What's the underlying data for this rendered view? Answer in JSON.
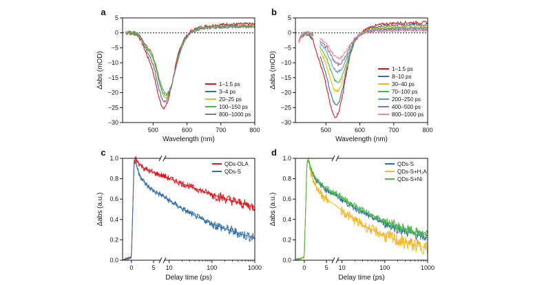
{
  "colors": {
    "red": "#e0141c",
    "blue": "#2f6ca8",
    "yellow": "#f2b51d",
    "green": "#4db848",
    "gray": "#7d7d7d",
    "purple": "#8a6fa8",
    "pink": "#f08a94",
    "lightblue": "#6a8fc4",
    "darkred": "#b8141a"
  },
  "chart_data": [
    {
      "panel": "a",
      "type": "line",
      "xlabel": "Wavelength (nm)",
      "ylabel": "Δabs (mOD)",
      "xlim": [
        410,
        800
      ],
      "ylim": [
        -30,
        5
      ],
      "xticks": [
        500,
        600,
        700,
        800
      ],
      "yticks": [
        5,
        0,
        -5,
        -10,
        -15,
        -20,
        -25,
        -30
      ],
      "legend_position": "bottom-right",
      "series": [
        {
          "name": "1–1.5 ps",
          "color": "red",
          "min": -25.0,
          "center": 532,
          "tail": 3.0
        },
        {
          "name": "3–4 ps",
          "color": "blue",
          "min": -23.0,
          "center": 535,
          "tail": 2.6
        },
        {
          "name": "20–25 ps",
          "color": "yellow",
          "min": -21.5,
          "center": 537,
          "tail": 2.4
        },
        {
          "name": "100–150 ps",
          "color": "green",
          "min": -21.0,
          "center": 538,
          "tail": 2.2
        },
        {
          "name": "800–1000 ps",
          "color": "gray",
          "min": -20.5,
          "center": 539,
          "tail": 2.0
        }
      ]
    },
    {
      "panel": "b",
      "type": "line",
      "xlabel": "Wavelength (nm)",
      "ylabel": "Δabs (mOD)",
      "xlim": [
        410,
        800
      ],
      "ylim": [
        -30,
        5
      ],
      "xticks": [
        500,
        600,
        700,
        800
      ],
      "yticks": [
        5,
        0,
        -5,
        -10,
        -15,
        -20,
        -25,
        -30
      ],
      "legend_position": "bottom-right",
      "series": [
        {
          "name": "1–1.5 ps",
          "color": "red",
          "min": -28.0,
          "center": 528,
          "tail": 3.5
        },
        {
          "name": "8–10 ps",
          "color": "blue",
          "min": -24.0,
          "center": 530,
          "tail": 2.8
        },
        {
          "name": "30–40 ps",
          "color": "yellow",
          "min": -19.5,
          "center": 532,
          "tail": 2.2
        },
        {
          "name": "70–100 ps",
          "color": "green",
          "min": -16.5,
          "center": 534,
          "tail": 1.8
        },
        {
          "name": "200–250 ps",
          "color": "lightblue",
          "min": -13.0,
          "center": 536,
          "tail": 1.4
        },
        {
          "name": "400–500 ps",
          "color": "purple",
          "min": -10.5,
          "center": 537,
          "tail": 1.0
        },
        {
          "name": "800–1000 ps",
          "color": "pink",
          "min": -8.5,
          "center": 538,
          "tail": 0.8
        }
      ]
    },
    {
      "panel": "c",
      "type": "line",
      "xlabel": "Delay time (ps)",
      "ylabel": "Δabs (a.u.)",
      "ylim": [
        0,
        1.0
      ],
      "yticks": [
        0.0,
        0.2,
        0.4,
        0.6,
        0.8,
        1.0
      ],
      "x_linear": {
        "range": [
          -2,
          7
        ],
        "ticks": [
          0,
          5
        ]
      },
      "x_log": {
        "range": [
          7,
          1000
        ],
        "ticks": [
          10,
          100,
          1000
        ]
      },
      "legend_position": "top-right",
      "series": [
        {
          "name": "QDs-OLA",
          "color": "red",
          "y_at_1ps": 1.0,
          "y_at_1000ps": 0.52
        },
        {
          "name": "QDs-S",
          "color": "blue",
          "y_at_1ps": 0.96,
          "y_at_1000ps": 0.22
        }
      ]
    },
    {
      "panel": "d",
      "type": "line",
      "xlabel": "Delay time (ps)",
      "ylabel": "Δabs (a.u.)",
      "ylim": [
        0,
        1.0
      ],
      "yticks": [
        0.0,
        0.2,
        0.4,
        0.6,
        0.8,
        1.0
      ],
      "x_linear": {
        "range": [
          -2,
          7
        ],
        "ticks": [
          0,
          5
        ]
      },
      "x_log": {
        "range": [
          7,
          1000
        ],
        "ticks": [
          10,
          100,
          1000
        ]
      },
      "legend_position": "top-right",
      "series": [
        {
          "name": "QDs-S",
          "color": "blue",
          "y_at_1ps": 0.98,
          "y_at_1000ps": 0.22
        },
        {
          "name": "QDs-S+H₂A",
          "color": "yellow",
          "y_at_1ps": 0.98,
          "y_at_1000ps": 0.12
        },
        {
          "name": "QDs-S+Ni",
          "color": "green",
          "y_at_1ps": 0.98,
          "y_at_1000ps": 0.24
        }
      ]
    }
  ]
}
